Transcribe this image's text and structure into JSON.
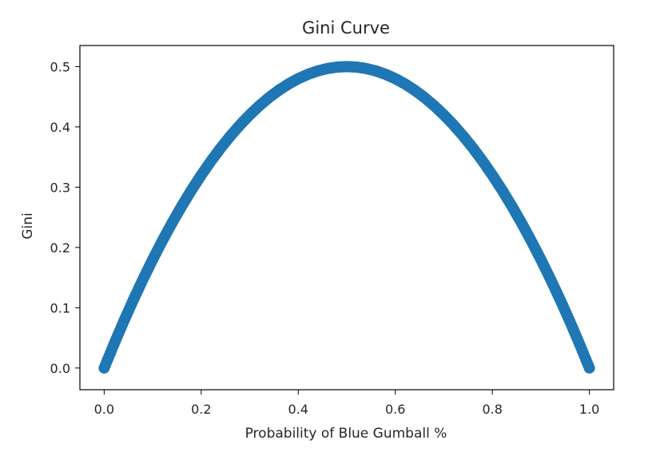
{
  "chart_data": {
    "type": "scatter",
    "title": "Gini Curve",
    "xlabel": "Probability of Blue Gumball %",
    "ylabel": "Gini",
    "xlim": [
      -0.05,
      1.05
    ],
    "ylim": [
      -0.036,
      0.535
    ],
    "xticks": [
      0.0,
      0.2,
      0.4,
      0.6,
      0.8,
      1.0
    ],
    "xtick_labels": [
      "0.0",
      "0.2",
      "0.4",
      "0.6",
      "0.8",
      "1.0"
    ],
    "yticks": [
      0.0,
      0.1,
      0.2,
      0.3,
      0.4,
      0.5
    ],
    "ytick_labels": [
      "0.0",
      "0.1",
      "0.2",
      "0.3",
      "0.4",
      "0.5"
    ],
    "grid": false,
    "marker_color": "#1f77b4",
    "series": [
      {
        "x": [
          0.0,
          0.02,
          0.04,
          0.06,
          0.08,
          0.1,
          0.12,
          0.14,
          0.16,
          0.18,
          0.2,
          0.22,
          0.24,
          0.26,
          0.28,
          0.3,
          0.32,
          0.34,
          0.36,
          0.38,
          0.4,
          0.42,
          0.44,
          0.46,
          0.48,
          0.5,
          0.52,
          0.54,
          0.56,
          0.58,
          0.6,
          0.62,
          0.64,
          0.66,
          0.68,
          0.7,
          0.72,
          0.74,
          0.76,
          0.78,
          0.8,
          0.82,
          0.84,
          0.86,
          0.88,
          0.9,
          0.92,
          0.94,
          0.96,
          0.98,
          1.0
        ],
        "y": [
          0.0,
          0.0392,
          0.0768,
          0.1128,
          0.1472,
          0.18,
          0.2112,
          0.2408,
          0.2688,
          0.2952,
          0.32,
          0.3432,
          0.3648,
          0.3848,
          0.4032,
          0.42,
          0.4352,
          0.4488,
          0.4608,
          0.4712,
          0.48,
          0.4872,
          0.4928,
          0.4968,
          0.4992,
          0.5,
          0.4992,
          0.4968,
          0.4928,
          0.4872,
          0.48,
          0.4712,
          0.4608,
          0.4488,
          0.4352,
          0.42,
          0.4032,
          0.3848,
          0.3648,
          0.3432,
          0.32,
          0.2952,
          0.2688,
          0.2408,
          0.2112,
          0.18,
          0.1472,
          0.1128,
          0.0768,
          0.0392,
          0.0
        ]
      }
    ]
  }
}
